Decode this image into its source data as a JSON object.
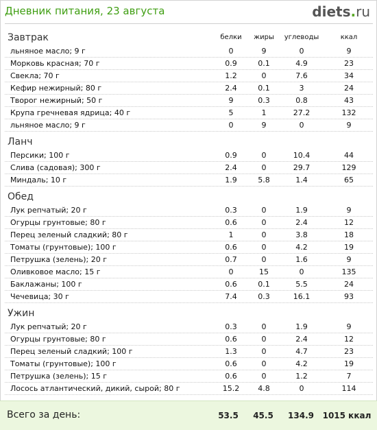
{
  "header": {
    "title": "Дневник питания, 23 августа",
    "logo": {
      "name": "diets",
      "dot": ".",
      "tld": "ru"
    }
  },
  "columns": {
    "protein": "белки",
    "fat": "жиры",
    "carbs": "углеводы",
    "kcal": "ккал"
  },
  "meals": [
    {
      "name": "Завтрак",
      "items": [
        {
          "food": "льняное масло; 9 г",
          "protein": "0",
          "fat": "9",
          "carbs": "0",
          "kcal": "9"
        },
        {
          "food": "Морковь красная; 70 г",
          "protein": "0.9",
          "fat": "0.1",
          "carbs": "4.9",
          "kcal": "23"
        },
        {
          "food": "Свекла; 70 г",
          "protein": "1.2",
          "fat": "0",
          "carbs": "7.6",
          "kcal": "34"
        },
        {
          "food": "Кефир нежирный; 80 г",
          "protein": "2.4",
          "fat": "0.1",
          "carbs": "3",
          "kcal": "24"
        },
        {
          "food": "Творог нежирный; 50 г",
          "protein": "9",
          "fat": "0.3",
          "carbs": "0.8",
          "kcal": "43"
        },
        {
          "food": "Крупа гречневая ядрица; 40 г",
          "protein": "5",
          "fat": "1",
          "carbs": "27.2",
          "kcal": "132"
        },
        {
          "food": "льняное масло; 9 г",
          "protein": "0",
          "fat": "9",
          "carbs": "0",
          "kcal": "9"
        }
      ]
    },
    {
      "name": "Ланч",
      "items": [
        {
          "food": "Персики; 100 г",
          "protein": "0.9",
          "fat": "0",
          "carbs": "10.4",
          "kcal": "44"
        },
        {
          "food": "Слива (садовая); 300 г",
          "protein": "2.4",
          "fat": "0",
          "carbs": "29.7",
          "kcal": "129"
        },
        {
          "food": "Миндаль; 10 г",
          "protein": "1.9",
          "fat": "5.8",
          "carbs": "1.4",
          "kcal": "65"
        }
      ]
    },
    {
      "name": "Обед",
      "items": [
        {
          "food": "Лук репчатый; 20 г",
          "protein": "0.3",
          "fat": "0",
          "carbs": "1.9",
          "kcal": "9"
        },
        {
          "food": "Огурцы грунтовые; 80 г",
          "protein": "0.6",
          "fat": "0",
          "carbs": "2.4",
          "kcal": "12"
        },
        {
          "food": "Перец зеленый сладкий; 80 г",
          "protein": "1",
          "fat": "0",
          "carbs": "3.8",
          "kcal": "18"
        },
        {
          "food": "Томаты (грунтовые); 100 г",
          "protein": "0.6",
          "fat": "0",
          "carbs": "4.2",
          "kcal": "19"
        },
        {
          "food": "Петрушка (зелень); 20 г",
          "protein": "0.7",
          "fat": "0",
          "carbs": "1.6",
          "kcal": "9"
        },
        {
          "food": "Оливковое масло; 15 г",
          "protein": "0",
          "fat": "15",
          "carbs": "0",
          "kcal": "135"
        },
        {
          "food": "Баклажаны; 100 г",
          "protein": "0.6",
          "fat": "0.1",
          "carbs": "5.5",
          "kcal": "24"
        },
        {
          "food": "Чечевица; 30 г",
          "protein": "7.4",
          "fat": "0.3",
          "carbs": "16.1",
          "kcal": "93"
        }
      ]
    },
    {
      "name": "Ужин",
      "items": [
        {
          "food": "Лук репчатый; 20 г",
          "protein": "0.3",
          "fat": "0",
          "carbs": "1.9",
          "kcal": "9"
        },
        {
          "food": "Огурцы грунтовые; 80 г",
          "protein": "0.6",
          "fat": "0",
          "carbs": "2.4",
          "kcal": "12"
        },
        {
          "food": "Перец зеленый сладкий; 100 г",
          "protein": "1.3",
          "fat": "0",
          "carbs": "4.7",
          "kcal": "23"
        },
        {
          "food": "Томаты (грунтовые); 100 г",
          "protein": "0.6",
          "fat": "0",
          "carbs": "4.2",
          "kcal": "19"
        },
        {
          "food": "Петрушка (зелень); 15 г",
          "protein": "0.6",
          "fat": "0",
          "carbs": "1.2",
          "kcal": "7"
        },
        {
          "food": "Лосось атлантический, дикий, сырой; 80 г",
          "protein": "15.2",
          "fat": "4.8",
          "carbs": "0",
          "kcal": "114"
        }
      ]
    }
  ],
  "totals": {
    "label": "Всего за день:",
    "protein": "53.5",
    "fat": "45.5",
    "carbs": "134.9",
    "kcal": "1015 ккал"
  },
  "colors": {
    "title": "#3f9e12",
    "total_bg": "#ecf7df",
    "logo_dot": "#5aa928"
  }
}
